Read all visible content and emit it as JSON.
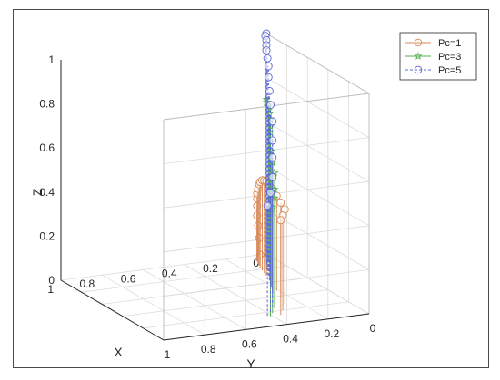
{
  "chart_data": {
    "type": "3d-stem",
    "title": "",
    "axes": {
      "x": {
        "label": "X",
        "range": [
          0,
          1
        ],
        "ticks": [
          "0",
          "0.2",
          "0.4",
          "0.6",
          "0.8",
          "1"
        ]
      },
      "y": {
        "label": "Y",
        "range": [
          0,
          1
        ],
        "ticks": [
          "0",
          "0.2",
          "0.4",
          "0.6",
          "0.8",
          "1"
        ]
      },
      "z": {
        "label": "Z",
        "range": [
          0,
          1
        ],
        "ticks": [
          "0",
          "0.2",
          "0.4",
          "0.6",
          "0.8",
          "1"
        ]
      }
    },
    "grid": true,
    "legend": {
      "position": "top-right",
      "entries": [
        "Pc=1",
        "Pc=3",
        "Pc=5"
      ]
    },
    "series": [
      {
        "name": "Pc=1",
        "color": "#d98a5a",
        "marker": "circle",
        "line": "solid",
        "points": [
          [
            0.0,
            0.97,
            0.0
          ],
          [
            0.01,
            0.96,
            0.08
          ],
          [
            0.02,
            0.95,
            0.14
          ],
          [
            0.03,
            0.94,
            0.19
          ],
          [
            0.05,
            0.93,
            0.24
          ],
          [
            0.07,
            0.92,
            0.28
          ],
          [
            0.09,
            0.91,
            0.31
          ],
          [
            0.12,
            0.9,
            0.34
          ],
          [
            0.15,
            0.89,
            0.37
          ],
          [
            0.18,
            0.88,
            0.39
          ],
          [
            0.22,
            0.87,
            0.41
          ],
          [
            0.26,
            0.86,
            0.42
          ],
          [
            0.3,
            0.85,
            0.43
          ],
          [
            0.35,
            0.84,
            0.43
          ],
          [
            0.42,
            0.82,
            0.43
          ],
          [
            0.52,
            0.79,
            0.43
          ],
          [
            0.62,
            0.76,
            0.43
          ],
          [
            0.72,
            0.73,
            0.43
          ],
          [
            0.8,
            0.68,
            0.43
          ],
          [
            0.86,
            0.64,
            0.43
          ]
        ]
      },
      {
        "name": "Pc=3",
        "color": "#52b04e",
        "marker": "star",
        "line": "solid",
        "points": [
          [
            0.0,
            1.0,
            0.7
          ],
          [
            0.04,
            0.98,
            0.7
          ],
          [
            0.08,
            0.97,
            0.7
          ],
          [
            0.12,
            0.95,
            0.69
          ],
          [
            0.17,
            0.93,
            0.69
          ],
          [
            0.22,
            0.91,
            0.68
          ],
          [
            0.28,
            0.88,
            0.67
          ],
          [
            0.34,
            0.85,
            0.66
          ],
          [
            0.4,
            0.82,
            0.64
          ],
          [
            0.47,
            0.79,
            0.62
          ],
          [
            0.54,
            0.76,
            0.59
          ],
          [
            0.62,
            0.73,
            0.57
          ],
          [
            0.7,
            0.69,
            0.52
          ],
          [
            0.76,
            0.66,
            0.5
          ],
          [
            0.82,
            0.62,
            0.48
          ],
          [
            0.86,
            0.59,
            0.47
          ]
        ]
      },
      {
        "name": "Pc=5",
        "color": "#5a69d4",
        "marker": "circle",
        "line": "dashed",
        "points": [
          [
            0.0,
            1.0,
            1.0
          ],
          [
            0.03,
            0.98,
            1.0
          ],
          [
            0.06,
            0.97,
            0.99
          ],
          [
            0.1,
            0.95,
            0.98
          ],
          [
            0.14,
            0.93,
            0.97
          ],
          [
            0.19,
            0.91,
            0.95
          ],
          [
            0.24,
            0.89,
            0.93
          ],
          [
            0.3,
            0.86,
            0.9
          ],
          [
            0.37,
            0.83,
            0.86
          ],
          [
            0.44,
            0.8,
            0.82
          ],
          [
            0.52,
            0.77,
            0.77
          ],
          [
            0.6,
            0.73,
            0.71
          ],
          [
            0.68,
            0.69,
            0.66
          ],
          [
            0.74,
            0.66,
            0.59
          ],
          [
            0.8,
            0.62,
            0.54
          ],
          [
            0.85,
            0.58,
            0.5
          ]
        ]
      }
    ]
  }
}
